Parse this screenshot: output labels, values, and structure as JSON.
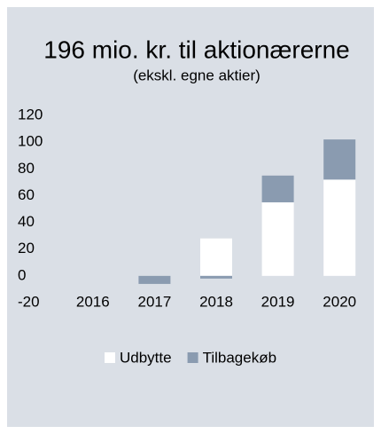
{
  "chart_data": {
    "type": "bar",
    "stacked": true,
    "title": "196 mio. kr. til aktionærerne",
    "subtitle": "(ekskl. egne aktier)",
    "categories": [
      "2016",
      "2017",
      "2018",
      "2019",
      "2020"
    ],
    "series": [
      {
        "name": "Udbytte",
        "color": "#ffffff",
        "values": [
          0,
          0,
          28,
          55,
          72
        ]
      },
      {
        "name": "Tilbagekøb",
        "color": "#8a9bb0",
        "values": [
          0,
          -6,
          -2,
          20,
          30
        ]
      }
    ],
    "ylim": [
      -20,
      120
    ],
    "yticks": [
      -20,
      0,
      20,
      40,
      60,
      80,
      100,
      120
    ],
    "grid": false,
    "legend": "bottom"
  }
}
